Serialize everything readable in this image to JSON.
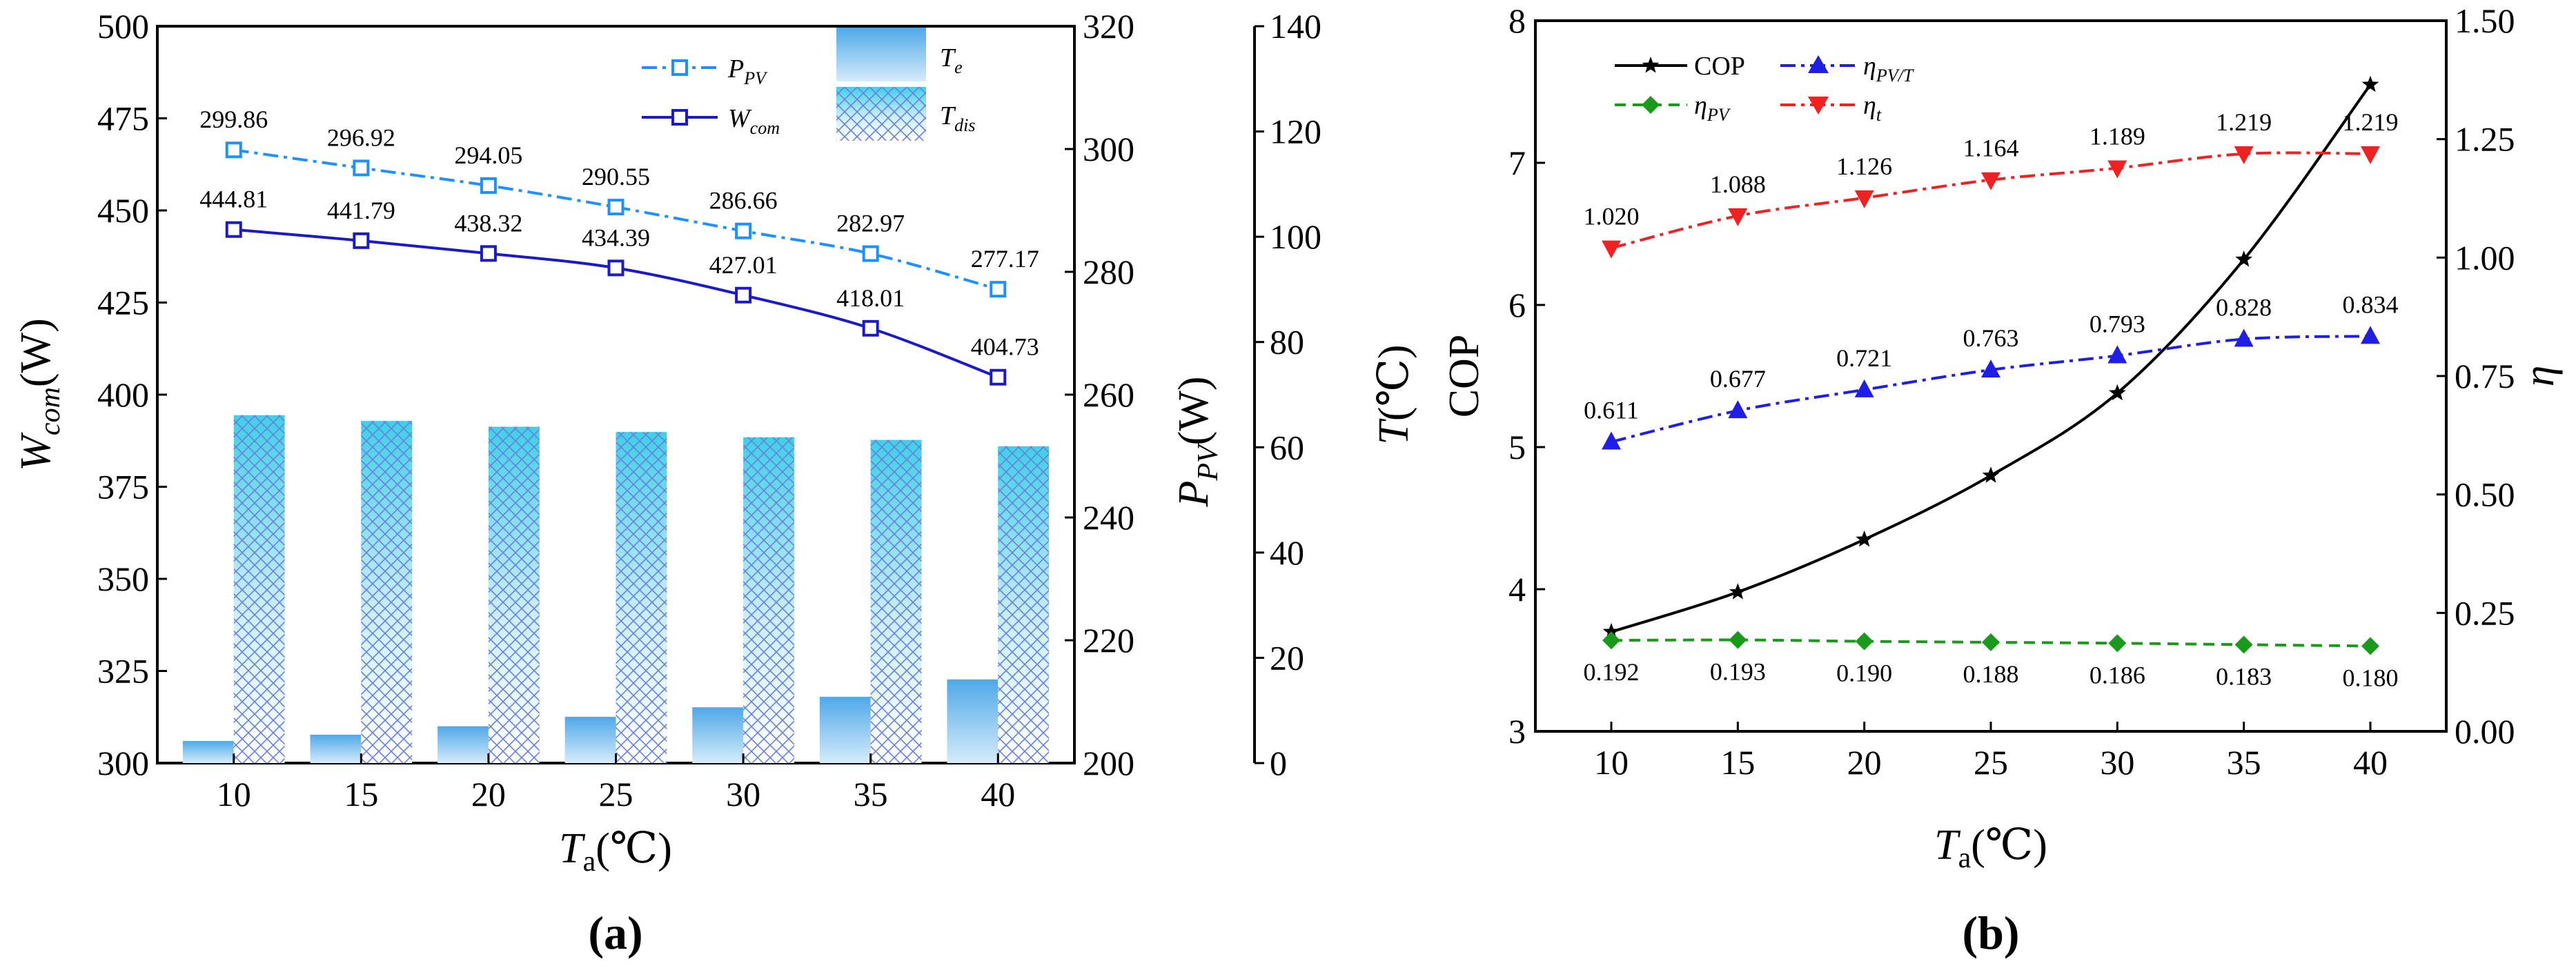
{
  "colors": {
    "p_pv": "#1e90ff",
    "w_com": "#1a1ac8",
    "cop": "#000000",
    "eta_pvt": "#1e1ee6",
    "eta_pv": "#1a9a1a",
    "eta_t": "#ee2222",
    "bar_light_top": "#4fa8e8",
    "bar_light_bottom": "#d6ecfa",
    "bar_hatch_top": "#3fd0e6",
    "bar_hatch_line": "#6a7fe0"
  },
  "chart_data": [
    {
      "id": "a",
      "type": "bar",
      "caption": "(a)",
      "x": [
        10,
        15,
        20,
        25,
        30,
        35,
        40
      ],
      "xticks": [
        "10",
        "15",
        "20",
        "25",
        "30",
        "35",
        "40"
      ],
      "xlabel_main": "T",
      "xlabel_sub": "a",
      "xlabel_unit": "(℃)",
      "xlim": [
        7,
        43
      ],
      "axes": {
        "left": {
          "label_main": "W",
          "label_sub": "com",
          "label_unit": "(W)",
          "ylim": [
            300,
            500
          ],
          "ticks": [
            "300",
            "325",
            "350",
            "375",
            "400",
            "425",
            "450",
            "475",
            "500"
          ]
        },
        "right1": {
          "label_main": "P",
          "label_sub": "PV",
          "label_unit": "(W)",
          "ylim": [
            200,
            320
          ],
          "ticks": [
            "200",
            "220",
            "240",
            "260",
            "280",
            "300",
            "320"
          ]
        },
        "right2": {
          "label_main": "T",
          "label_unit": "(℃)",
          "ylim": [
            0,
            140
          ],
          "ticks": [
            "0",
            "20",
            "40",
            "60",
            "80",
            "100",
            "120",
            "140"
          ]
        }
      },
      "series": [
        {
          "name": "P_PV",
          "legend_main": "P",
          "legend_sub": "PV",
          "kind": "line",
          "axis": "right1",
          "style": "dashdot",
          "marker": "square-open",
          "values": [
            299.86,
            296.92,
            294.05,
            290.55,
            286.66,
            282.97,
            277.17
          ],
          "labels": [
            "299.86",
            "296.92",
            "294.05",
            "290.55",
            "286.66",
            "282.97",
            "277.17"
          ]
        },
        {
          "name": "W_com",
          "legend_main": "W",
          "legend_sub": "com",
          "kind": "line",
          "axis": "left",
          "style": "solid",
          "marker": "square-open",
          "values": [
            444.81,
            441.79,
            438.32,
            434.39,
            427.01,
            418.01,
            404.73
          ],
          "labels": [
            "444.81",
            "441.79",
            "438.32",
            "434.39",
            "427.01",
            "418.01",
            "404.73"
          ]
        },
        {
          "name": "T_e",
          "legend_main": "T",
          "legend_sub": "e",
          "kind": "bar",
          "axis": "right2",
          "values": [
            4.2,
            5.4,
            7.0,
            8.8,
            10.6,
            12.6,
            15.9
          ]
        },
        {
          "name": "T_dis",
          "legend_main": "T",
          "legend_sub": "dis",
          "kind": "bar-hatched",
          "axis": "right2",
          "values": [
            66.1,
            65.0,
            63.9,
            62.9,
            61.9,
            61.4,
            60.2
          ]
        }
      ]
    },
    {
      "id": "b",
      "type": "line",
      "caption": "(b)",
      "x": [
        10,
        15,
        20,
        25,
        30,
        35,
        40
      ],
      "xticks": [
        "10",
        "15",
        "20",
        "25",
        "30",
        "35",
        "40"
      ],
      "xlabel_main": "T",
      "xlabel_sub": "a",
      "xlabel_unit": "(℃)",
      "xlim": [
        7,
        43
      ],
      "axes": {
        "left": {
          "label": "COP",
          "ylim": [
            3,
            8
          ],
          "ticks": [
            "3",
            "4",
            "5",
            "6",
            "7",
            "8"
          ]
        },
        "right": {
          "label": "η",
          "ylim": [
            0,
            1.5
          ],
          "ticks": [
            "0.00",
            "0.25",
            "0.50",
            "0.75",
            "1.00",
            "1.25",
            "1.50"
          ]
        }
      },
      "series": [
        {
          "name": "COP",
          "legend_text": "COP",
          "kind": "line",
          "axis": "left",
          "style": "solid",
          "marker": "star",
          "values": [
            3.7,
            3.98,
            4.35,
            4.8,
            5.38,
            6.32,
            7.55
          ]
        },
        {
          "name": "eta_PV/T",
          "legend_main": "η",
          "legend_sub": "PV/T",
          "kind": "line",
          "axis": "right",
          "style": "dashdot",
          "marker": "triangle-up",
          "values": [
            0.611,
            0.677,
            0.721,
            0.763,
            0.793,
            0.828,
            0.834
          ],
          "labels": [
            "0.611",
            "0.677",
            "0.721",
            "0.763",
            "0.793",
            "0.828",
            "0.834"
          ]
        },
        {
          "name": "eta_PV",
          "legend_main": "η",
          "legend_sub": "PV",
          "kind": "line",
          "axis": "right",
          "style": "dashed",
          "marker": "diamond",
          "values": [
            0.192,
            0.193,
            0.19,
            0.188,
            0.186,
            0.183,
            0.18
          ],
          "labels": [
            "0.192",
            "0.193",
            "0.190",
            "0.188",
            "0.186",
            "0.183",
            "0.180"
          ]
        },
        {
          "name": "eta_t",
          "legend_main": "η",
          "legend_sub": "t",
          "kind": "line",
          "axis": "right",
          "style": "dashdot",
          "marker": "triangle-down",
          "values": [
            1.02,
            1.088,
            1.126,
            1.164,
            1.189,
            1.219,
            1.219
          ],
          "labels": [
            "1.020",
            "1.088",
            "1.126",
            "1.164",
            "1.189",
            "1.219",
            "1.219"
          ]
        }
      ]
    }
  ]
}
